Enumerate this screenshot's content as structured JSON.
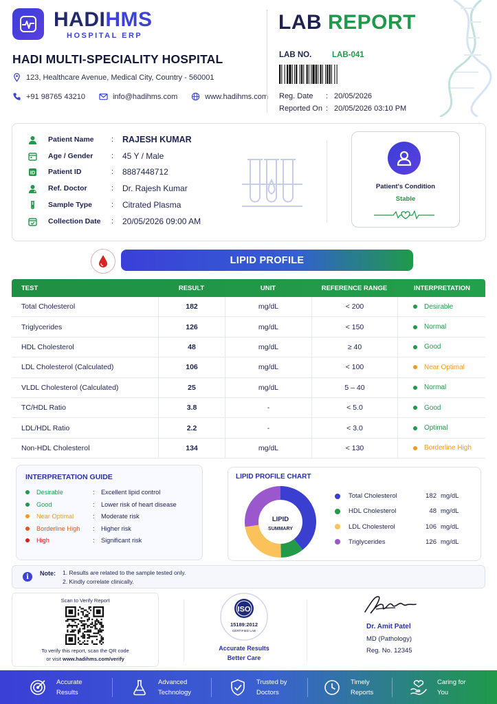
{
  "brand": {
    "name_part1": "HADI",
    "name_part2": "HMS",
    "subtitle": "HOSPITAL ERP"
  },
  "hospital": {
    "name": "HADI MULTI-SPECIALITY HOSPITAL",
    "address": "123, Healthcare Avenue, Medical City, Country - 560001",
    "phone": "+91 98765 43210",
    "email": "info@hadihms.com",
    "website": "www.hadihms.com"
  },
  "report": {
    "title_part1": "LAB",
    "title_part2": "REPORT",
    "lab_no_label": "LAB NO.",
    "lab_no": "LAB-041",
    "reg_date_label": "Reg. Date",
    "reg_date": "20/05/2026",
    "reported_on_label": "Reported On",
    "reported_on": "20/05/2026 03:10 PM"
  },
  "patient": {
    "fields": [
      {
        "label": "Patient Name",
        "value": "RAJESH KUMAR"
      },
      {
        "label": "Age / Gender",
        "value": "45 Y / Male"
      },
      {
        "label": "Patient ID",
        "value": "8887448712"
      },
      {
        "label": "Ref. Doctor",
        "value": "Dr. Rajesh Kumar"
      },
      {
        "label": "Sample Type",
        "value": "Citrated Plasma"
      },
      {
        "label": "Collection Date",
        "value": "20/05/2026 09:00 AM"
      }
    ],
    "condition_label": "Patient's Condition",
    "condition_value": "Stable"
  },
  "section_title": "LIPID PROFILE",
  "table": {
    "headers": [
      "TEST",
      "RESULT",
      "UNIT",
      "REFERENCE RANGE",
      "INTERPRETATION"
    ],
    "rows": [
      {
        "test": "Total Cholesterol",
        "result": "182",
        "unit": "mg/dL",
        "ref": "< 200",
        "interp": "Desirable",
        "color": "#1f9a4a"
      },
      {
        "test": "Triglycerides",
        "result": "126",
        "unit": "mg/dL",
        "ref": "< 150",
        "interp": "Normal",
        "color": "#1f9a4a"
      },
      {
        "test": "HDL Cholesterol",
        "result": "48",
        "unit": "mg/dL",
        "ref": "≥ 40",
        "interp": "Good",
        "color": "#1f9a4a"
      },
      {
        "test": "LDL Cholesterol (Calculated)",
        "result": "106",
        "unit": "mg/dL",
        "ref": "< 100",
        "interp": "Near Optimal",
        "color": "#f39a1e"
      },
      {
        "test": "VLDL Cholesterol (Calculated)",
        "result": "25",
        "unit": "mg/dL",
        "ref": "5 – 40",
        "interp": "Normal",
        "color": "#1f9a4a"
      },
      {
        "test": "TC/HDL Ratio",
        "result": "3.8",
        "unit": "-",
        "ref": "< 5.0",
        "interp": "Good",
        "color": "#1f9a4a"
      },
      {
        "test": "LDL/HDL Ratio",
        "result": "2.2",
        "unit": "-",
        "ref": "< 3.0",
        "interp": "Optimal",
        "color": "#1f9a4a"
      },
      {
        "test": "Non-HDL Cholesterol",
        "result": "134",
        "unit": "mg/dL",
        "ref": "< 130",
        "interp": "Borderline High",
        "color": "#f39a1e"
      }
    ]
  },
  "guide": {
    "title": "INTERPRETATION GUIDE",
    "items": [
      {
        "label": "Desirable",
        "text": "Excellent lipid control",
        "color": "#1f9a4a"
      },
      {
        "label": "Good",
        "text": "Lower risk of heart disease",
        "color": "#1f9a4a"
      },
      {
        "label": "Near Optimal",
        "text": "Moderate risk",
        "color": "#f39a1e"
      },
      {
        "label": "Borderline High",
        "text": "Higher risk",
        "color": "#e0531c"
      },
      {
        "label": "High",
        "text": "Significant risk",
        "color": "#d62020"
      }
    ]
  },
  "chart_data": {
    "type": "pie",
    "title": "LIPID PROFILE CHART",
    "center_label_1": "LIPID",
    "center_label_2": "SUMMARY",
    "series": [
      {
        "name": "Total Cholesterol",
        "value": 182,
        "unit": "mg/dL",
        "color": "#3a3fd0"
      },
      {
        "name": "HDL Cholesterol",
        "value": 48,
        "unit": "mg/dL",
        "color": "#23994a"
      },
      {
        "name": "LDL Cholesterol",
        "value": 106,
        "unit": "mg/dL",
        "color": "#fbc25c"
      },
      {
        "name": "Triglycerides",
        "value": 126,
        "unit": "mg/dL",
        "color": "#9b57cc"
      }
    ],
    "legend_position": "right"
  },
  "note": {
    "label": "Note:",
    "line1": "1. Results are related to the sample tested only.",
    "line2": "2. Kindly correlate clinically."
  },
  "verify": {
    "title": "Scan to Verify Report",
    "line1": "To verify this report, scan the QR code",
    "line2_prefix": "or visit ",
    "line2_url": "www.hadihms.com/verify"
  },
  "iso": {
    "logo_text": "ISO",
    "number": "15189:2012",
    "certified": "CERTIFIED LAB",
    "line1": "Accurate Results",
    "line2": "Better Care"
  },
  "doctor": {
    "name": "Dr. Amit Patel",
    "degree": "MD (Pathology)",
    "reg": "Reg. No. 12345"
  },
  "footer": {
    "items": [
      {
        "line1": "Accurate",
        "line2": "Results",
        "icon": "target-icon"
      },
      {
        "line1": "Advanced",
        "line2": "Technology",
        "icon": "flask-icon"
      },
      {
        "line1": "Trusted by",
        "line2": "Doctors",
        "icon": "shield-check-icon"
      },
      {
        "line1": "Timely",
        "line2": "Reports",
        "icon": "clock-icon"
      },
      {
        "line1": "Caring for",
        "line2": "You",
        "icon": "heart-hands-icon"
      }
    ]
  }
}
